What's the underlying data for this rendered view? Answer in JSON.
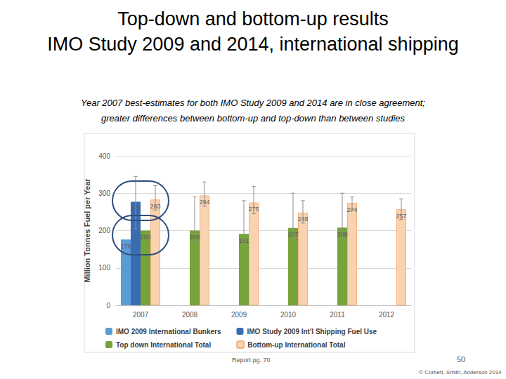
{
  "chart_data": {
    "type": "bar",
    "title": "Top-down and bottom-up results\nIMO Study 2009 and 2014, international shipping",
    "subtitle": "Year 2007 best-estimates for both IMO Study 2009 and 2014 are in close agreement;\ngreater differences between bottom-up and top-down than between studies",
    "y_label": "Million Tonnes Fuel per Year",
    "annotations": [
      "Report pg. 70",
      "50",
      "© Corbett, Smith, Anderson 2014"
    ],
    "categories": [
      "2007",
      "2008",
      "2009",
      "2010",
      "2011",
      "2012"
    ],
    "series": [
      {
        "name": "IMO 2009 International Bunkers",
        "color": "#5b9bd5",
        "values": [
          176,
          null,
          null,
          null,
          null,
          null
        ]
      },
      {
        "name": "IMO Study 2009 Int'l Shipping Fuel Use",
        "color": "#3a6cb2",
        "values": [
          277,
          null,
          null,
          null,
          null,
          null
        ],
        "error_low": [
          205,
          null,
          null,
          null,
          null,
          null
        ],
        "error_high": [
          345,
          null,
          null,
          null,
          null,
          null
        ]
      },
      {
        "name": "Top down International Total",
        "color": "#77a33a",
        "values": [
          200,
          200,
          191,
          207,
          208,
          null
        ],
        "error_low": [
          null,
          170,
          165,
          180,
          180,
          null
        ],
        "error_high": [
          null,
          290,
          280,
          300,
          300,
          null
        ]
      },
      {
        "name": "Bottom-up International Total",
        "color": "#f9d3b0",
        "values": [
          283,
          294,
          275,
          248,
          274,
          257
        ],
        "error_low": [
          255,
          265,
          245,
          220,
          255,
          230
        ],
        "error_high": [
          320,
          330,
          318,
          280,
          290,
          285
        ]
      }
    ],
    "ylim": [
      0,
      400
    ],
    "yticks": [
      0,
      100,
      200,
      300,
      400
    ],
    "grid": true,
    "data_labels": true,
    "legend": "bottom"
  }
}
